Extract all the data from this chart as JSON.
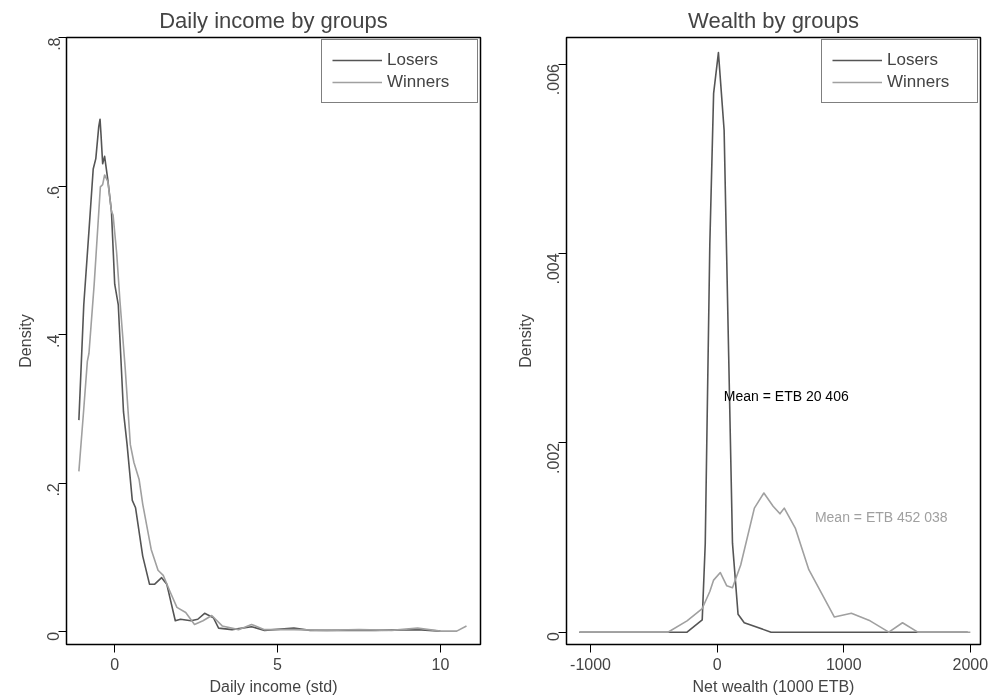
{
  "chart_data": [
    {
      "type": "line",
      "title": "Daily income by groups",
      "xlabel": "Daily income (std)",
      "ylabel": "Density",
      "xlim": [
        -1.48,
        11.23
      ],
      "ylim": [
        -0.017,
        0.8
      ],
      "xticks": [
        0,
        5,
        10
      ],
      "yticks": [
        0,
        {
          "value": 0.2,
          "label": ".2"
        },
        {
          "value": 0.4,
          "label": ".4"
        },
        {
          "value": 0.6,
          "label": ".6"
        },
        {
          "value": 0.8,
          "label": ".8"
        }
      ],
      "legend": "top right",
      "grid": false,
      "series": [
        {
          "name": "Losers",
          "color": "#555555",
          "x": [
            -1.1,
            -0.95,
            -0.79,
            -0.66,
            -0.58,
            -0.49,
            -0.45,
            -0.42,
            -0.37,
            -0.31,
            -0.21,
            -0.1,
            0.0,
            0.11,
            0.27,
            0.38,
            0.54,
            0.64,
            0.86,
            1.07,
            1.22,
            1.44,
            1.6,
            1.86,
            2.02,
            2.34,
            2.55,
            2.76,
            3.03,
            3.19,
            3.6,
            4.2,
            4.6,
            5.5,
            6.0,
            7.0,
            8.0,
            9.3,
            10.0
          ],
          "values": [
            0.285,
            0.44,
            0.54,
            0.623,
            0.637,
            0.68,
            0.69,
            0.669,
            0.63,
            0.64,
            0.608,
            0.566,
            0.468,
            0.44,
            0.296,
            0.252,
            0.177,
            0.167,
            0.102,
            0.064,
            0.064,
            0.073,
            0.064,
            0.015,
            0.017,
            0.015,
            0.017,
            0.025,
            0.019,
            0.005,
            0.003,
            0.007,
            0.002,
            0.005,
            0.002,
            0.002,
            0.002,
            0.003,
            0.001
          ]
        },
        {
          "name": "Winners",
          "color": "#a0a0a0",
          "x": [
            -1.1,
            -0.95,
            -0.84,
            -0.79,
            -0.63,
            -0.44,
            -0.37,
            -0.31,
            -0.21,
            -0.1,
            -0.05,
            0.06,
            0.16,
            0.32,
            0.48,
            0.59,
            0.75,
            0.86,
            1.12,
            1.33,
            1.49,
            1.7,
            1.91,
            2.18,
            2.45,
            2.71,
            2.98,
            3.3,
            3.8,
            4.2,
            4.6,
            5.5,
            6.5,
            7.5,
            8.5,
            9.3,
            10.0,
            10.5,
            10.8
          ],
          "values": [
            0.216,
            0.3,
            0.364,
            0.375,
            0.468,
            0.599,
            0.602,
            0.615,
            0.606,
            0.566,
            0.561,
            0.51,
            0.446,
            0.356,
            0.252,
            0.228,
            0.205,
            0.172,
            0.111,
            0.083,
            0.076,
            0.054,
            0.033,
            0.026,
            0.01,
            0.015,
            0.022,
            0.008,
            0.003,
            0.01,
            0.003,
            0.003,
            0.002,
            0.003,
            0.002,
            0.005,
            0.001,
            0.001,
            0.008
          ]
        }
      ]
    },
    {
      "type": "line",
      "title": "Wealth by groups",
      "xlabel": "Net wealth (1000 ETB)",
      "ylabel": "Density",
      "xlim": [
        -1190,
        2080
      ],
      "ylim": [
        -0.00013,
        0.00628
      ],
      "xticks": [
        -1000,
        0,
        1000,
        2000
      ],
      "yticks": [
        0,
        {
          "value": 0.002,
          "label": ".002"
        },
        {
          "value": 0.004,
          "label": ".004"
        },
        {
          "value": 0.006,
          "label": ".006"
        }
      ],
      "legend": "top right",
      "grid": false,
      "annotations": [
        "Mean = ETB 20 406",
        "Mean = ETB 452 038"
      ],
      "series": [
        {
          "name": "Losers",
          "color": "#555555",
          "x": [
            -1089,
            -776,
            -389,
            -238,
            -118,
            -94,
            -58,
            -28,
            10,
            55,
            91,
            121,
            165,
            214,
            426,
            1000,
            1500,
            1980
          ],
          "values": [
            0,
            0,
            0,
            0,
            0.00013,
            0.00094,
            0.0041,
            0.00569,
            0.00612,
            0.0053,
            0.00292,
            0.00094,
            0.00019,
            0.0001,
            0,
            0,
            0,
            0
          ]
        },
        {
          "name": "Winners",
          "color": "#a0a0a0",
          "x": [
            -1089,
            -776,
            -389,
            -238,
            -118,
            -58,
            -28,
            25,
            76,
            121,
            186,
            294,
            369,
            442,
            496,
            530,
            617,
            724,
            805,
            926,
            1060,
            1208,
            1356,
            1464,
            1585,
            1774,
            1908,
            2000
          ],
          "values": [
            0,
            0,
            0,
            0.00012,
            0.00025,
            0.00043,
            0.00055,
            0.00063,
            0.00049,
            0.00047,
            0.00071,
            0.00131,
            0.00147,
            0.00133,
            0.00125,
            0.00131,
            0.0011,
            0.00066,
            0.00046,
            0.00016,
            0.0002,
            0.00012,
            0,
            0.0001,
            0,
            0,
            0,
            0
          ]
        }
      ]
    }
  ]
}
